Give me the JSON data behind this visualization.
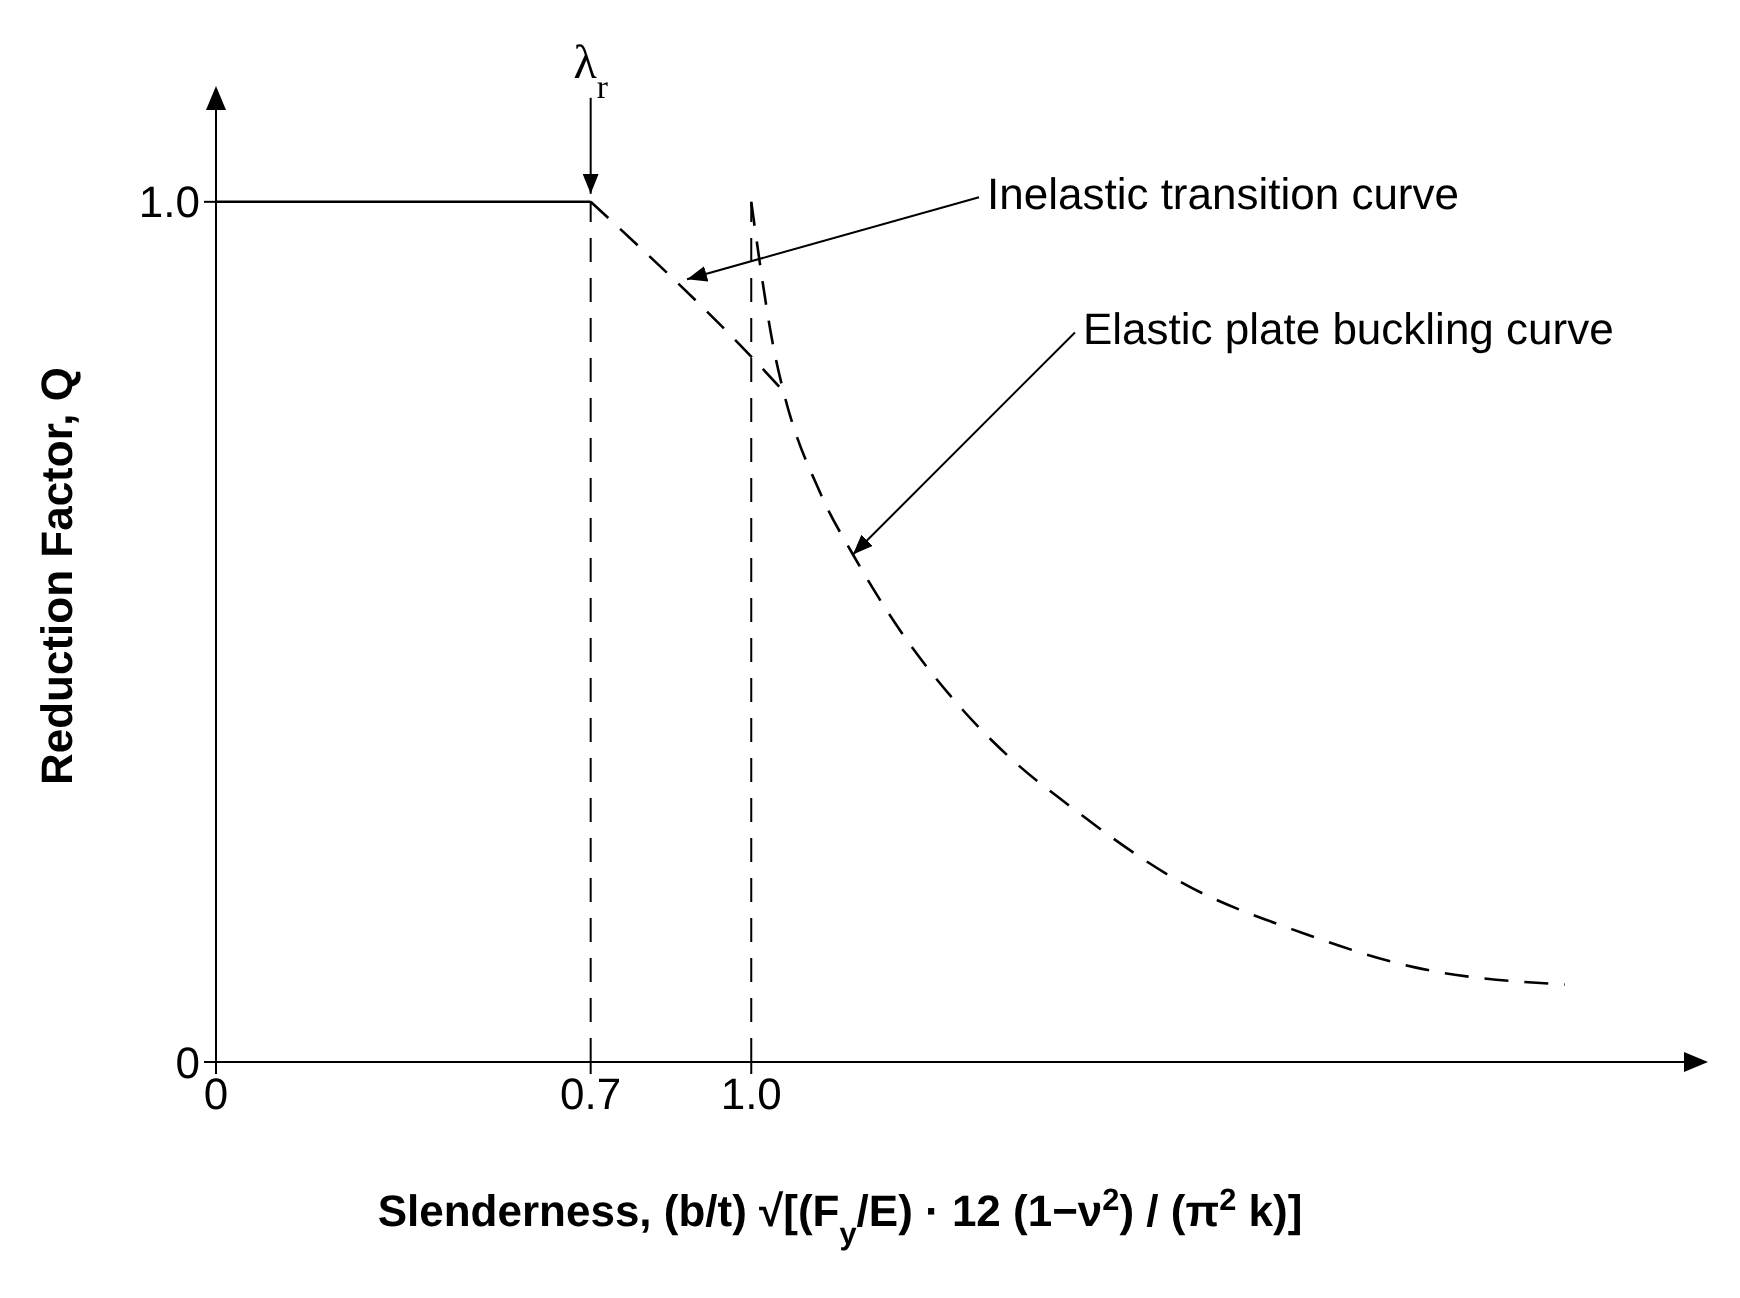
{
  "chart_data": {
    "type": "line",
    "xlabel": "Slenderness, (b/t) √[(F$_{y}$/E) · 12 (1−ν$^{2}$) / (π$^{2}$ k)]",
    "ylabel": "Reduction Factor, Q",
    "xlim": [
      0,
      2.78
    ],
    "ylim": [
      0,
      1.13
    ],
    "xticks": [
      0,
      0.7,
      {
        "value": 1,
        "label": "1.0"
      }
    ],
    "yticks": [
      0,
      {
        "value": 1,
        "label": "1.0"
      }
    ],
    "marker": "none",
    "series": [
      {
        "color": "#000000",
        "line_style": "solid",
        "x": [
          0,
          0.7
        ],
        "values": [
          1,
          1
        ]
      },
      {
        "color": "#000000",
        "line_style": "dashed",
        "x": [
          0.7,
          1.0,
          1.06
        ],
        "values": [
          1,
          0.82,
          0.78
        ]
      },
      {
        "color": "#000000",
        "line_style": "dashed",
        "x": [
          1.0,
          1.045,
          1.06,
          1.13,
          1.19,
          1.28,
          1.38,
          1.49,
          1.59,
          1.8,
          2.03,
          2.24,
          2.52
        ],
        "values": [
          1.0,
          0.82,
          0.78,
          0.66,
          0.59,
          0.5,
          0.42,
          0.35,
          0.3,
          0.21,
          0.15,
          0.11,
          0.09
        ]
      }
    ],
    "ref_lines": [
      {
        "axis": "x",
        "value": 0.7,
        "line_style": "dashed",
        "color": "#000000"
      },
      {
        "axis": "x",
        "value": 1.0,
        "line_style": "dashed",
        "color": "#000000"
      }
    ],
    "annotations": [
      {
        "text": "λ$_{r}$",
        "x": 0.7,
        "y": 1.0
      },
      {
        "text": "Inelastic transition curve",
        "x": 0.88,
        "y": 0.91
      },
      {
        "text": "Elastic plate buckling curve",
        "x": 1.19,
        "y": 0.59
      }
    ]
  }
}
